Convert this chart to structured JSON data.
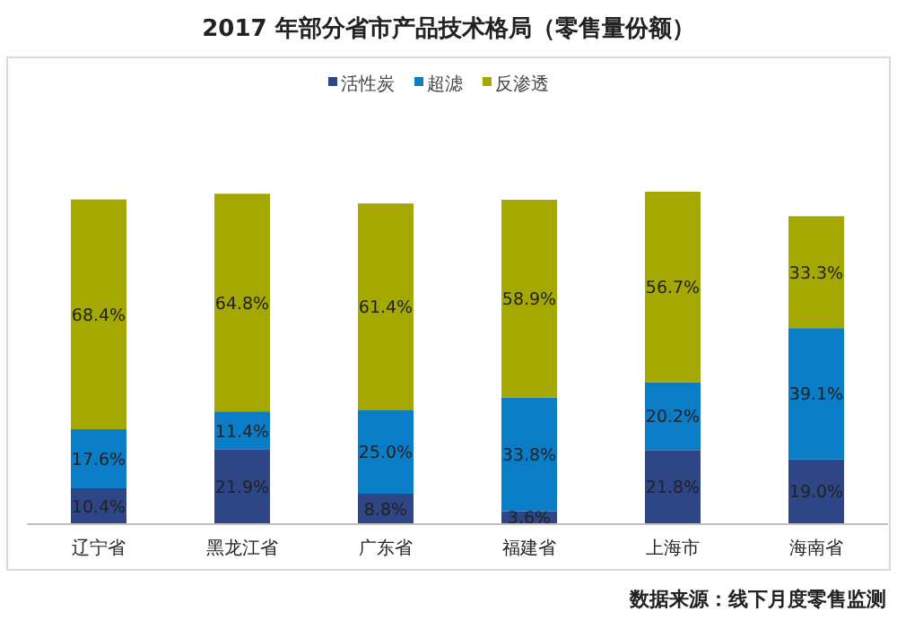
{
  "chart_data": {
    "type": "bar",
    "stacked": true,
    "title": "2017 年部分省市产品技术格局（零售量份额）",
    "categories": [
      "辽宁省",
      "黑龙江省",
      "广东省",
      "福建省",
      "上海市",
      "海南省"
    ],
    "series": [
      {
        "name": "活性炭",
        "color": "#2e4586",
        "values": [
          10.4,
          21.9,
          8.8,
          3.6,
          21.8,
          19.0
        ],
        "value_labels": [
          "10.4%",
          "21.9%",
          "8.8%",
          "3.6%",
          "21.8%",
          "19.0%"
        ]
      },
      {
        "name": "超滤",
        "color": "#0b7dc6",
        "values": [
          17.6,
          11.4,
          25.0,
          33.8,
          20.2,
          39.1
        ],
        "value_labels": [
          "17.6%",
          "11.4%",
          "25.0%",
          "33.8%",
          "20.2%",
          "39.1%"
        ]
      },
      {
        "name": "反渗透",
        "color": "#a4a800",
        "values": [
          68.4,
          64.8,
          61.4,
          58.9,
          56.7,
          33.3
        ],
        "value_labels": [
          "68.4%",
          "64.8%",
          "61.4%",
          "58.9%",
          "56.7%",
          "33.3%"
        ]
      }
    ],
    "legend": "top",
    "annotations": [
      "数据来源：线下月度零售监测"
    ]
  }
}
